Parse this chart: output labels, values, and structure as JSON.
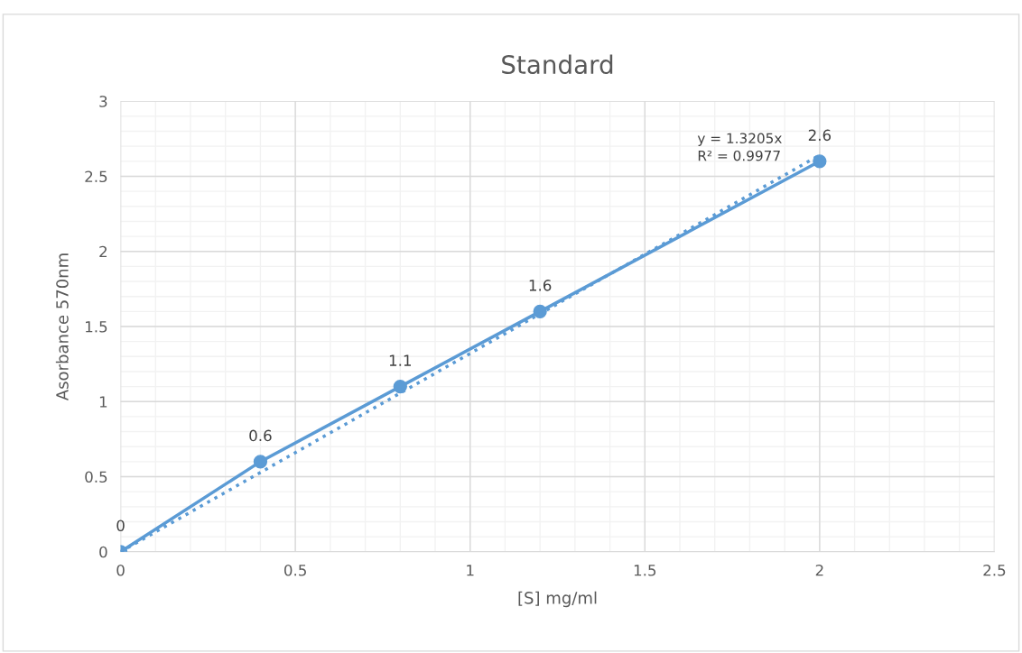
{
  "chart_data": {
    "type": "line",
    "title": "Standard",
    "xlabel": "[S] mg/ml",
    "ylabel": "Asorbance 570nm",
    "x": [
      0,
      0.4,
      0.8,
      1.2,
      2
    ],
    "series": [
      {
        "color": "#5b9bd5",
        "values": [
          0,
          0.6,
          1.1,
          1.6,
          2.6
        ],
        "value_labels": [
          "0",
          "0.6",
          "1.1",
          "1.6",
          "2.6"
        ],
        "marker": "circle",
        "line_style": "solid"
      },
      {
        "type": "line",
        "color": "#5b9bd5",
        "x": [
          0,
          2
        ],
        "values": [
          0,
          2.641
        ],
        "marker": "none",
        "line_style": "dotted"
      }
    ],
    "annotations": [
      "y = 1.3205x\nR² = 0.9977"
    ],
    "xlim": [
      0,
      2.5
    ],
    "xticks": [
      0,
      0.5,
      1,
      1.5,
      2,
      2.5
    ],
    "ylim": [
      0,
      3
    ],
    "yticks": [
      0,
      0.5,
      1,
      1.5,
      2,
      2.5,
      3
    ],
    "grid": true
  }
}
